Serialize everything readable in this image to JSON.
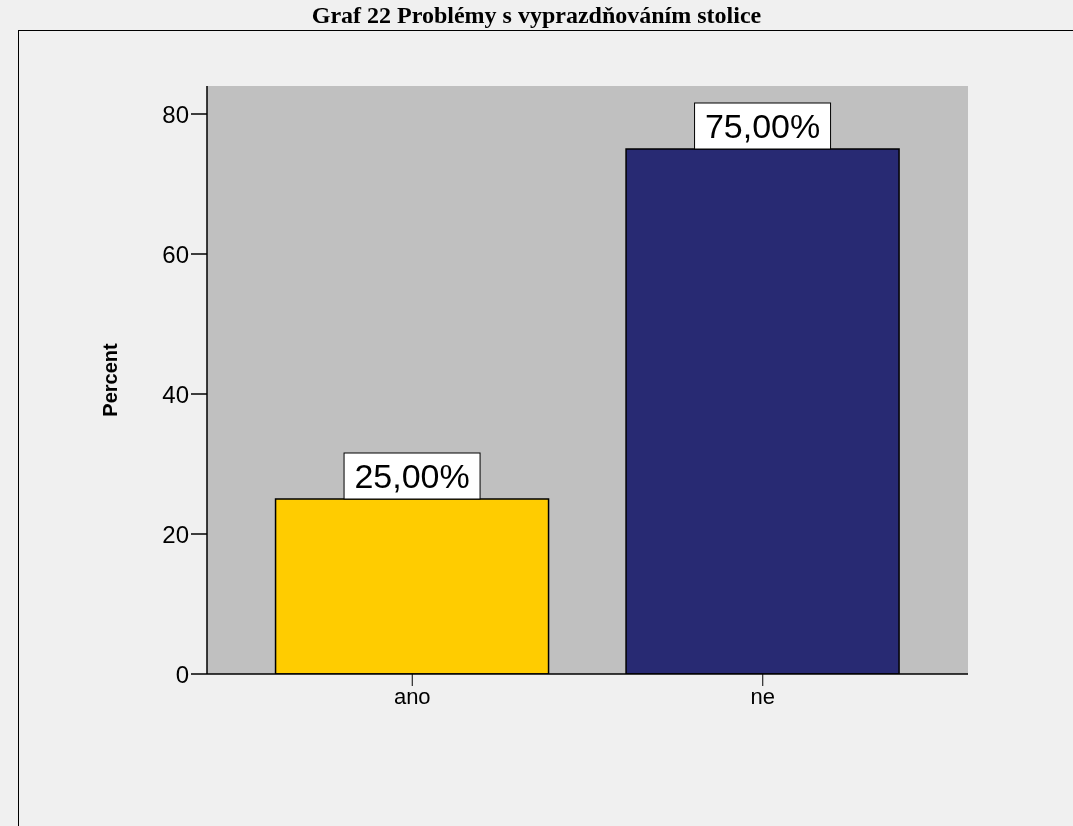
{
  "chart_data": {
    "type": "bar",
    "title": "Graf 22 Problémy s vyprazdňováním stolice",
    "ylabel": "Percent",
    "categories": [
      "ano",
      "ne"
    ],
    "values": [
      25,
      75
    ],
    "colors": [
      "#ffcc00",
      "#282a73"
    ],
    "value_labels": [
      "25,00%",
      "75,00%"
    ],
    "ylim": [
      0,
      84
    ],
    "yticks": [
      0,
      20,
      40,
      60,
      80
    ],
    "grid": false,
    "legend": false
  }
}
